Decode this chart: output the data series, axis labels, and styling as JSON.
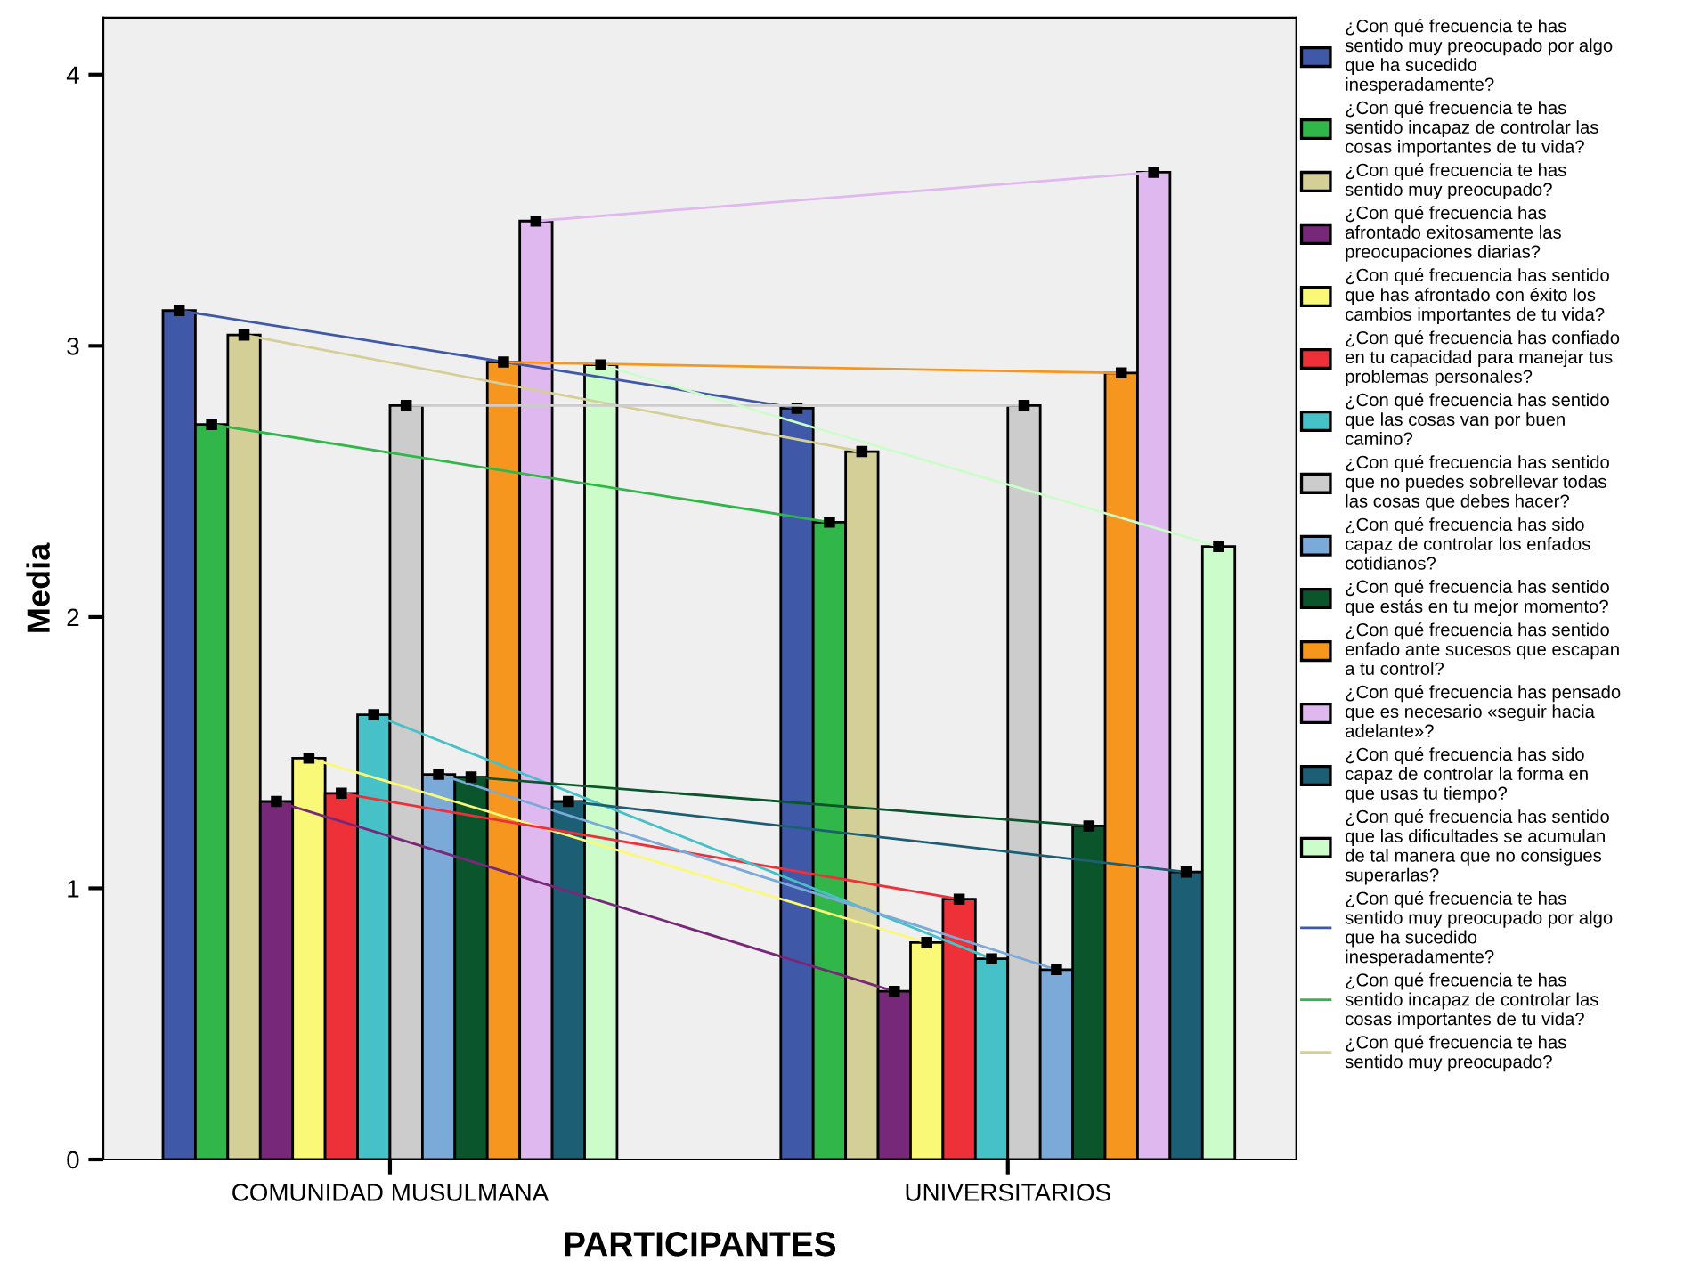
{
  "chart_data": {
    "type": "bar",
    "xlabel": "PARTICIPANTES",
    "ylabel": "Media",
    "categories": [
      "COMUNIDAD MUSULMANA",
      "UNIVERSITARIOS"
    ],
    "ylim": [
      0,
      4.21
    ],
    "yticks": [
      0,
      1,
      2,
      3,
      4
    ],
    "grid": false,
    "legend": "right",
    "marker": "square",
    "series": [
      {
        "name": "¿Con qué frecuencia te has\nsentido muy preocupado por algo\nque ha sucedido\ninesperadamente?",
        "color": "#3f58a8",
        "values": [
          3.13,
          2.77
        ]
      },
      {
        "name": "¿Con qué frecuencia te has\nsentido incapaz de controlar las\ncosas importantes de tu vida?",
        "color": "#31b64a",
        "values": [
          2.71,
          2.35
        ]
      },
      {
        "name": "¿Con qué frecuencia te has\nsentido muy preocupado?",
        "color": "#d4cf96",
        "values": [
          3.04,
          2.61
        ]
      },
      {
        "name": "¿Con qué frecuencia has\nafrontado exitosamente las\npreocupaciones diarias?",
        "color": "#782878",
        "values": [
          1.32,
          0.62
        ]
      },
      {
        "name": "¿Con qué frecuencia has sentido\nque has afrontado con éxito los\ncambios importantes de tu vida?",
        "color": "#faf877",
        "values": [
          1.48,
          0.8
        ]
      },
      {
        "name": "¿Con qué frecuencia has confiado\nen tu capacidad para manejar tus\nproblemas personales?",
        "color": "#ee3038",
        "values": [
          1.35,
          0.96
        ]
      },
      {
        "name": "¿Con qué frecuencia has sentido\nque las cosas van por buen\ncamino?",
        "color": "#47c1c8",
        "values": [
          1.64,
          0.74
        ]
      },
      {
        "name": "¿Con qué frecuencia has sentido\nque no puedes sobrellevar todas\nlas cosas que debes hacer?",
        "color": "#cccccc",
        "values": [
          2.78,
          2.78
        ]
      },
      {
        "name": "¿Con qué frecuencia has sido\ncapaz de controlar los enfados\ncotidianos?",
        "color": "#7ba9d8",
        "values": [
          1.42,
          0.7
        ]
      },
      {
        "name": "¿Con qué frecuencia has sentido\nque estás en tu mejor momento?",
        "color": "#0b552c",
        "values": [
          1.41,
          1.23
        ]
      },
      {
        "name": "¿Con qué frecuencia has sentido\nenfado ante sucesos que escapan\na tu control?",
        "color": "#f7961f",
        "values": [
          2.94,
          2.9
        ]
      },
      {
        "name": "¿Con qué frecuencia has pensado\nque es necesario «seguir hacia\nadelante»?",
        "color": "#dfb8f0",
        "values": [
          3.46,
          3.64
        ]
      },
      {
        "name": "¿Con qué frecuencia has sido\ncapaz de controlar la forma en\nque usas tu tiempo?",
        "color": "#1c5e74",
        "values": [
          1.32,
          1.06
        ]
      },
      {
        "name": "¿Con qué frecuencia has sentido\nque las dificultades se acumulan\nde tal manera que no consigues\nsuperarlas?",
        "color": "#ccfcc9",
        "values": [
          2.93,
          2.26
        ]
      },
      {
        "type": "line",
        "name": "¿Con qué frecuencia te has\nsentido muy preocupado por algo\nque ha sucedido\ninesperadamente?",
        "color": "#3f58a8",
        "values": [
          3.13,
          2.77
        ]
      },
      {
        "type": "line",
        "name": "¿Con qué frecuencia te has\nsentido incapaz de controlar las\ncosas importantes de tu vida?",
        "color": "#31b64a",
        "values": [
          2.71,
          2.35
        ]
      },
      {
        "type": "line",
        "name": "¿Con qué frecuencia te has\nsentido muy preocupado?",
        "color": "#d4cf96",
        "values": [
          3.04,
          2.61
        ]
      },
      {
        "type": "line",
        "color": "#782878",
        "values": [
          1.32,
          0.62
        ]
      },
      {
        "type": "line",
        "color": "#faf877",
        "values": [
          1.48,
          0.8
        ]
      },
      {
        "type": "line",
        "color": "#ee3038",
        "values": [
          1.35,
          0.96
        ]
      },
      {
        "type": "line",
        "color": "#47c1c8",
        "values": [
          1.64,
          0.74
        ]
      },
      {
        "type": "line",
        "color": "#cccccc",
        "values": [
          2.78,
          2.78
        ]
      },
      {
        "type": "line",
        "color": "#7ba9d8",
        "values": [
          1.42,
          0.7
        ]
      },
      {
        "type": "line",
        "color": "#0b552c",
        "values": [
          1.41,
          1.23
        ]
      },
      {
        "type": "line",
        "color": "#f7961f",
        "values": [
          2.94,
          2.9
        ]
      },
      {
        "type": "line",
        "color": "#dfb8f0",
        "values": [
          3.46,
          3.64
        ]
      },
      {
        "type": "line",
        "color": "#1c5e74",
        "values": [
          1.32,
          1.06
        ]
      },
      {
        "type": "line",
        "color": "#ccfcc9",
        "values": [
          2.93,
          2.26
        ]
      }
    ]
  }
}
